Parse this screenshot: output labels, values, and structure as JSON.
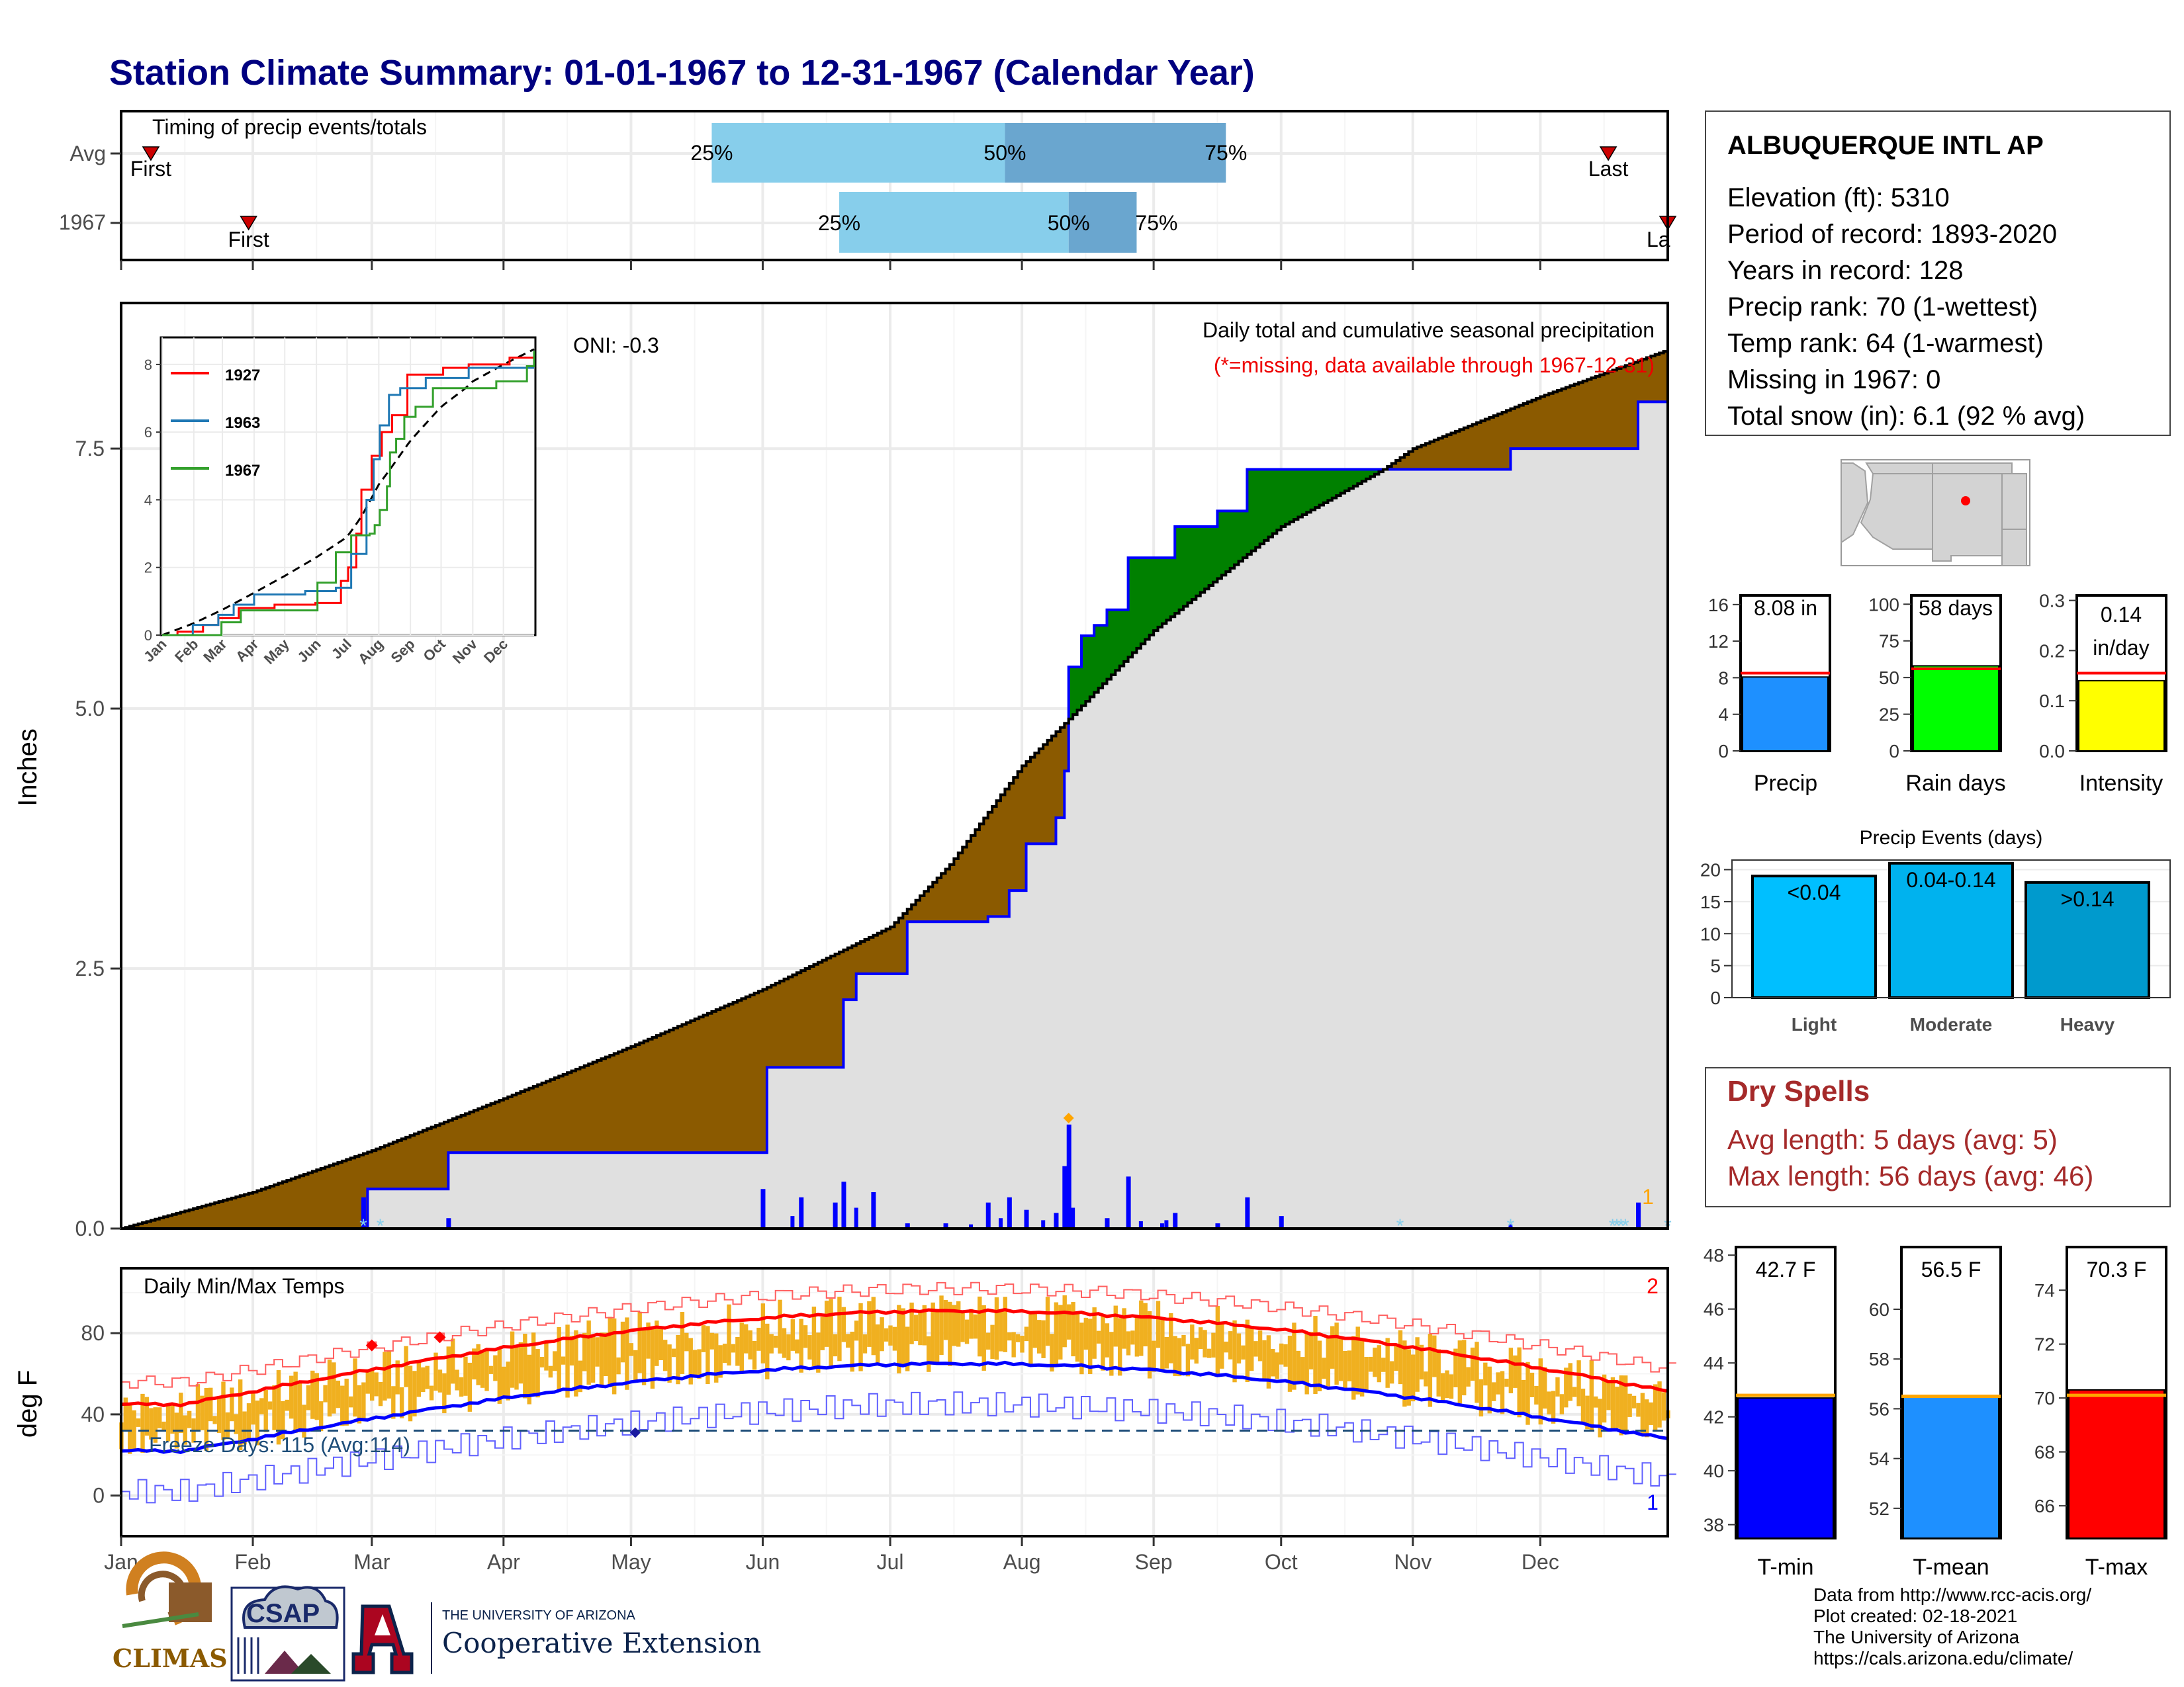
{
  "title": "Station Climate Summary: 01-01-1967 to 12-31-1967 (Calendar Year)",
  "colors": {
    "title": "#000080",
    "normal_cum": "#8b5a00",
    "above_cum": "#008000",
    "obs_line": "#0000ff",
    "area_gray": "#e0e0e0",
    "tmax": "#ff0000",
    "tmin": "#0000ff",
    "temp_bar": "#f0b020",
    "precip_bar": "#1e90ff",
    "raindays_bar": "#00ff00",
    "intensity_bar": "#ffff00",
    "light_bar": "#00bfff",
    "moderate_bar": "#00b2ee",
    "heavy_bar": "#009acd",
    "dry_spells": "#a52a2a",
    "pct_light": "#87ceeb",
    "pct_dark": "#6aa6cf"
  },
  "timing": {
    "title": "Timing of precip events/totals",
    "rows": [
      "Avg",
      "1967"
    ],
    "first_label": "First",
    "last_label": "Last",
    "last_label_clipped": "La",
    "p25": "25%",
    "p50": "50%",
    "p75": "75%",
    "avg": {
      "first": "1967-01-08",
      "p25": "1967-05-20",
      "p50": "1967-07-28",
      "p75": "1967-09-18",
      "last": "1967-12-17"
    },
    "y1967": {
      "first": "1967-01-31",
      "p25": "1967-06-19",
      "p50": "1967-08-12",
      "p75": "1967-08-28",
      "last": "1967-12-31"
    }
  },
  "precip_panel": {
    "ylabel": "Inches",
    "title": "Daily total and cumulative seasonal precipitation",
    "subtitle": "(*=missing, data available through 1967-12-31)",
    "oni": "ONI: -0.3",
    "y_ticks": [
      "0.0",
      "2.5",
      "5.0",
      "7.5"
    ],
    "ylim": [
      0,
      8.9
    ],
    "right_annotation": "1"
  },
  "inset": {
    "legend": [
      "1927",
      "1963",
      "1967"
    ],
    "y_ticks": [
      "0",
      "2",
      "4",
      "6",
      "8"
    ],
    "x_ticks": [
      "Jan",
      "Feb",
      "Mar",
      "Apr",
      "May",
      "Jun",
      "Jul",
      "Aug",
      "Sep",
      "Oct",
      "Nov",
      "Dec"
    ]
  },
  "temp_panel": {
    "title": "Daily Min/Max Temps",
    "ylabel": "deg F",
    "y_ticks": [
      "0",
      "40",
      "80"
    ],
    "ylim": [
      -20,
      112
    ],
    "freeze_label": "Freeze Days: 115 (Avg:114)",
    "freeze_line": 32,
    "top_right_annotation": "2",
    "bottom_right_annotation": "1"
  },
  "months": [
    "Jan",
    "Feb",
    "Mar",
    "Apr",
    "May",
    "Jun",
    "Jul",
    "Aug",
    "Sep",
    "Oct",
    "Nov",
    "Dec"
  ],
  "station": {
    "name": "ALBUQUERQUE INTL AP",
    "lines": [
      "Elevation (ft): 5310",
      "Period of record: 1893-2020",
      "Years in record: 128",
      "Precip rank: 70 (1-wettest)",
      "Temp rank: 64 (1-warmest)",
      "Missing in 1967: 0",
      "Total snow (in): 6.1 (92 % avg)"
    ]
  },
  "mini_bars": {
    "precip": {
      "label": "Precip",
      "value_label": "8.08 in",
      "value": 8.08,
      "avg": 8.5,
      "ylim": [
        0,
        17
      ],
      "ticks": [
        "0",
        "4",
        "8",
        "12",
        "16"
      ]
    },
    "raindays": {
      "label": "Rain days",
      "value_label": "58 days",
      "value": 58,
      "avg": 56,
      "ylim": [
        0,
        106
      ],
      "ticks": [
        "0",
        "25",
        "50",
        "75",
        "100"
      ]
    },
    "intensity": {
      "label": "Intensity",
      "value_label_1": "0.14",
      "value_label_2": "in/day",
      "value": 0.14,
      "avg": 0.155,
      "ylim": [
        0,
        0.31
      ],
      "ticks": [
        "0.0",
        "0.1",
        "0.2",
        "0.3"
      ]
    }
  },
  "events": {
    "title": "Precip Events (days)",
    "categories": [
      "Light",
      "Moderate",
      "Heavy"
    ],
    "bar_labels": [
      "<0.04",
      "0.04-0.14",
      ">0.14"
    ],
    "values": [
      19,
      21,
      18
    ],
    "ylim": [
      0,
      21.5
    ],
    "ticks": [
      "0",
      "5",
      "10",
      "15",
      "20"
    ]
  },
  "dry_spells": {
    "title": "Dry Spells",
    "avg_line": "Avg length: 5 days (avg: 5)",
    "max_line": "Max length: 56 days (avg: 46)"
  },
  "temp_bars": {
    "tmin": {
      "label": "T-min",
      "value_label": "42.7 F",
      "value": 42.7,
      "avg": 42.8,
      "ylim": [
        37.5,
        48.3
      ],
      "ticks": [
        "38",
        "40",
        "42",
        "44",
        "46",
        "48"
      ]
    },
    "tmean": {
      "label": "T-mean",
      "value_label": "56.5 F",
      "value": 56.5,
      "avg": 56.5,
      "ylim": [
        50.8,
        62.5
      ],
      "ticks": [
        "52",
        "54",
        "56",
        "58",
        "60"
      ]
    },
    "tmax": {
      "label": "T-max",
      "value_label": "70.3 F",
      "value": 70.3,
      "avg": 70.1,
      "ylim": [
        64.8,
        75.6
      ],
      "ticks": [
        "66",
        "68",
        "70",
        "72",
        "74"
      ]
    }
  },
  "footer": {
    "lines": [
      "Data from http://www.rcc-acis.org/",
      "Plot created: 02-18-2021",
      "The University of Arizona",
      "https://cals.arizona.edu/climate/"
    ],
    "climas": "CLIMAS",
    "csap": "CSAP",
    "ua_small": "THE UNIVERSITY OF ARIZONA",
    "ua_large": "Cooperative Extension"
  },
  "chart_data": {
    "type": "area",
    "title": "Daily total and cumulative seasonal precipitation",
    "ylabel": "Inches",
    "ylim": [
      0,
      8.9
    ],
    "x_range": [
      "1967-01-01",
      "1967-12-31"
    ],
    "normal_cumulative": {
      "x": [
        "1967-01-01",
        "1967-02-01",
        "1967-03-01",
        "1967-04-01",
        "1967-05-01",
        "1967-06-01",
        "1967-07-01",
        "1967-07-15",
        "1967-08-01",
        "1967-08-12",
        "1967-09-01",
        "1967-10-01",
        "1967-10-25",
        "1967-11-01",
        "1967-12-01",
        "1967-12-31"
      ],
      "y": [
        0.0,
        0.35,
        0.75,
        1.25,
        1.75,
        2.3,
        2.9,
        3.5,
        4.45,
        4.9,
        5.75,
        6.75,
        7.3,
        7.5,
        8.0,
        8.45
      ]
    },
    "observed_cumulative": {
      "x": [
        "1967-01-01",
        "1967-02-27",
        "1967-02-28",
        "1967-03-19",
        "1967-06-01",
        "1967-06-02",
        "1967-06-18",
        "1967-06-20",
        "1967-06-23",
        "1967-07-05",
        "1967-07-24",
        "1967-07-29",
        "1967-08-02",
        "1967-08-09",
        "1967-08-11",
        "1967-08-12",
        "1967-08-15",
        "1967-08-18",
        "1967-08-21",
        "1967-08-26",
        "1967-09-01",
        "1967-09-06",
        "1967-09-16",
        "1967-09-23",
        "1967-11-24",
        "1967-12-24",
        "1967-12-31"
      ],
      "y": [
        0.0,
        0.0,
        0.38,
        0.73,
        0.73,
        1.55,
        1.55,
        2.2,
        2.45,
        2.95,
        3.0,
        3.25,
        3.7,
        3.95,
        4.4,
        5.4,
        5.7,
        5.8,
        5.95,
        6.45,
        6.45,
        6.75,
        6.9,
        7.3,
        7.5,
        7.95,
        8.08
      ]
    },
    "daily_bars": {
      "x": [
        "1967-02-27",
        "1967-03-19",
        "1967-06-01",
        "1967-06-10",
        "1967-06-18",
        "1967-06-20",
        "1967-06-27",
        "1967-07-05",
        "1967-07-14",
        "1967-07-24",
        "1967-07-29",
        "1967-08-02",
        "1967-08-09",
        "1967-08-11",
        "1967-08-12",
        "1967-08-21",
        "1967-08-26",
        "1967-09-06",
        "1967-09-16",
        "1967-09-23",
        "1967-10-01",
        "1967-12-24"
      ],
      "y": [
        0.3,
        0.1,
        0.38,
        0.3,
        0.25,
        0.45,
        0.35,
        0.05,
        0.05,
        0.25,
        0.3,
        0.18,
        0.15,
        0.6,
        1.0,
        0.1,
        0.5,
        0.15,
        0.05,
        0.3,
        0.12,
        0.25
      ]
    },
    "temp_daily_summary": {
      "normal_tmax_range": [
        45,
        91
      ],
      "normal_tmin_range": [
        22,
        65
      ],
      "series": [
        "normal Tmax",
        "normal Tmin",
        "daily Tmax/Tmin bars",
        "record high",
        "record low"
      ]
    }
  }
}
